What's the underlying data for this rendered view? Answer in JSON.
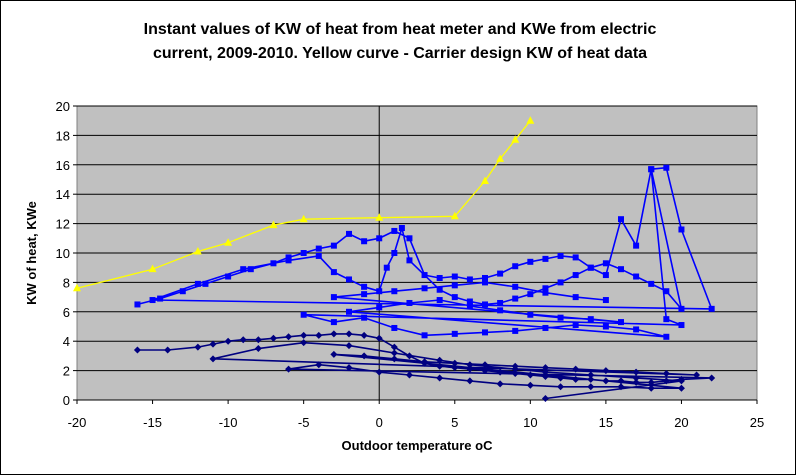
{
  "chart_data": {
    "type": "scatter",
    "title_line1": "Instant values of KW of heat from heat meter and KWe from electric",
    "title_line2": "current, 2009-2010. Yellow curve - Carrier design KW of heat data",
    "xlabel": "Outdoor temperature oC",
    "ylabel": "KW of heat, KWe",
    "xlim": [
      -20,
      25
    ],
    "ylim": [
      0,
      20
    ],
    "x_ticks": [
      "-20",
      "-15",
      "-10",
      "-5",
      "0",
      "5",
      "10",
      "15",
      "20",
      "25"
    ],
    "y_ticks": [
      "0",
      "2",
      "4",
      "6",
      "8",
      "10",
      "12",
      "14",
      "16",
      "18",
      "20"
    ],
    "grid": "horizontal",
    "plot_background": "#c0c0c0",
    "series": [
      {
        "color": "#ffff00",
        "marker": "triangle",
        "x": [
          -20,
          -15,
          -12,
          -10,
          -7,
          -5,
          0,
          5,
          7,
          8,
          9,
          10
        ],
        "y": [
          7.6,
          8.9,
          10.1,
          10.7,
          11.9,
          12.3,
          12.4,
          12.5,
          14.9,
          16.4,
          17.7,
          19.0
        ]
      },
      {
        "color": "#0000ff",
        "marker": "square",
        "x": [
          -16,
          -14.5,
          -13,
          -11.5,
          -10,
          -8.5,
          -7,
          -6,
          -5,
          -4,
          -3,
          -2,
          -1,
          0,
          1,
          2,
          3,
          4,
          5,
          6,
          7,
          8,
          9,
          10,
          11,
          12,
          13,
          14,
          15,
          16,
          17,
          18,
          19,
          20,
          22,
          -15,
          -12,
          -9,
          -6,
          -4,
          -3,
          -2,
          -1,
          0,
          0.5,
          1,
          1.5,
          2,
          4,
          5,
          6,
          7,
          8,
          9,
          10,
          11,
          12,
          13,
          14,
          15,
          16,
          17,
          18,
          19,
          20,
          18,
          19,
          20,
          -5,
          -3,
          -1,
          1,
          3,
          5,
          7,
          9,
          11,
          13,
          15,
          17,
          19,
          -2,
          0,
          2,
          4,
          6,
          8,
          10,
          12,
          14,
          16,
          -3,
          -1,
          1,
          3,
          5,
          7,
          9,
          11,
          13,
          15
        ],
        "y": [
          6.5,
          6.9,
          7.4,
          7.9,
          8.4,
          8.9,
          9.3,
          9.7,
          10.0,
          10.3,
          10.5,
          11.3,
          10.8,
          11.0,
          11.5,
          11.0,
          8.5,
          8.3,
          8.4,
          8.2,
          8.3,
          8.6,
          9.1,
          9.4,
          9.6,
          9.8,
          9.7,
          9.0,
          8.5,
          12.3,
          10.5,
          15.7,
          15.8,
          11.6,
          6.2,
          6.8,
          7.9,
          8.9,
          9.5,
          9.8,
          8.7,
          8.2,
          7.7,
          7.4,
          9.0,
          10.0,
          11.7,
          9.5,
          7.5,
          7.0,
          6.7,
          6.5,
          6.6,
          6.9,
          7.2,
          7.6,
          8.0,
          8.5,
          9.0,
          9.3,
          8.9,
          8.4,
          7.9,
          7.4,
          6.2,
          15.7,
          5.5,
          5.1,
          5.8,
          5.3,
          5.6,
          4.9,
          4.4,
          4.5,
          4.6,
          4.7,
          4.9,
          5.1,
          5.0,
          4.8,
          4.3,
          6.0,
          6.3,
          6.6,
          6.8,
          6.4,
          6.1,
          5.8,
          5.6,
          5.5,
          5.3,
          7.0,
          7.2,
          7.4,
          7.6,
          7.8,
          8.0,
          7.7,
          7.3,
          7.0,
          6.8
        ]
      },
      {
        "color": "#000080",
        "marker": "diamond",
        "x": [
          -16,
          -14,
          -12,
          -11,
          -10,
          -9,
          -8,
          -7,
          -6,
          -5,
          -4,
          -3,
          -2,
          -1,
          0,
          1,
          2,
          3,
          4,
          5,
          6,
          7,
          8,
          9,
          10,
          11,
          12,
          13,
          14,
          15,
          16,
          17,
          18,
          19,
          20,
          22,
          -6,
          -4,
          -2,
          0,
          2,
          4,
          6,
          8,
          10,
          12,
          14,
          16,
          18,
          20,
          -3,
          -1,
          1,
          3,
          5,
          7,
          9,
          11,
          13,
          15,
          17,
          19,
          21,
          -11,
          -8,
          -5,
          -2,
          1,
          4,
          6,
          9,
          11,
          14,
          17,
          20,
          11
        ],
        "y": [
          3.4,
          3.4,
          3.6,
          3.8,
          4.0,
          4.1,
          4.1,
          4.2,
          4.3,
          4.4,
          4.4,
          4.5,
          4.5,
          4.4,
          4.2,
          3.6,
          3.0,
          2.5,
          2.3,
          2.2,
          2.1,
          2.0,
          1.9,
          1.8,
          1.7,
          1.6,
          1.5,
          1.4,
          1.4,
          1.3,
          1.3,
          1.2,
          1.2,
          1.3,
          1.4,
          1.5,
          2.1,
          2.4,
          2.2,
          1.9,
          1.7,
          1.5,
          1.3,
          1.1,
          1.0,
          0.9,
          0.9,
          0.9,
          0.8,
          0.8,
          3.1,
          3.0,
          2.8,
          2.6,
          2.5,
          2.4,
          2.3,
          2.2,
          2.1,
          2.0,
          1.9,
          1.8,
          1.7,
          2.8,
          3.5,
          3.9,
          3.7,
          3.2,
          2.7,
          2.4,
          2.1,
          1.9,
          1.7,
          1.5,
          1.3,
          0.1
        ]
      }
    ]
  }
}
